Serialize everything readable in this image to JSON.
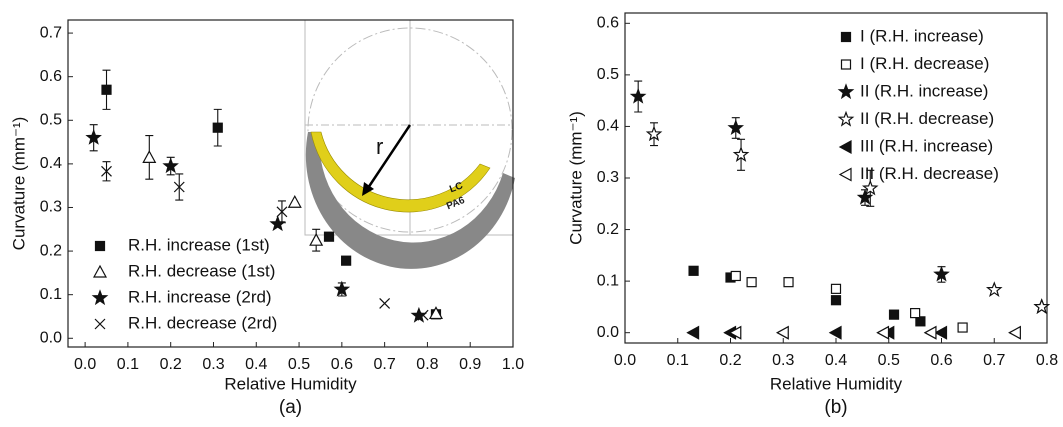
{
  "chart_data": [
    {
      "type": "scatter",
      "panel_label": "(a)",
      "x_label": "Relative Humidity",
      "y_label": "Curvature (mm⁻¹)",
      "xlim": [
        -0.04,
        1.0
      ],
      "ylim": [
        -0.02,
        0.73
      ],
      "xticks": [
        {
          "value": 0,
          "label": "0.0"
        },
        {
          "value": 0.1,
          "label": "0.1"
        },
        {
          "value": 0.2,
          "label": "0.2"
        },
        {
          "value": 0.3,
          "label": "0.3"
        },
        {
          "value": 0.4,
          "label": "0.4"
        },
        {
          "value": 0.5,
          "label": "0.5"
        },
        {
          "value": 0.6,
          "label": "0.6"
        },
        {
          "value": 0.7,
          "label": "0.7"
        },
        {
          "value": 0.8,
          "label": "0.8"
        },
        {
          "value": 0.9,
          "label": "0.9"
        },
        {
          "value": 1,
          "label": "1.0"
        }
      ],
      "yticks": [
        {
          "value": 0,
          "label": "0.0"
        },
        {
          "value": 0.1,
          "label": "0.1"
        },
        {
          "value": 0.2,
          "label": "0.2"
        },
        {
          "value": 0.3,
          "label": "0.3"
        },
        {
          "value": 0.4,
          "label": "0.4"
        },
        {
          "value": 0.5,
          "label": "0.5"
        },
        {
          "value": 0.6,
          "label": "0.6"
        },
        {
          "value": 0.7,
          "label": "0.7"
        }
      ],
      "inset_labels": [
        "r",
        "LC",
        "PA6"
      ],
      "series": [
        {
          "name": "R.H. increase (1st)",
          "marker": "square",
          "color": "#111111",
          "x": [
            0.05,
            0.31,
            0.57,
            0.61,
            0.82
          ],
          "y": [
            0.57,
            0.483,
            0.233,
            0.178,
            0.055
          ],
          "errors": [
            0.045,
            0.042,
            null,
            null,
            null
          ]
        },
        {
          "name": "R.H. decrease (1st)",
          "marker": "triangle-open",
          "color": "#111111",
          "x": [
            0.15,
            0.49,
            0.54,
            0.82
          ],
          "y": [
            0.415,
            0.312,
            0.225,
            0.057
          ],
          "errors": [
            0.05,
            null,
            0.025,
            null
          ]
        },
        {
          "name": "R.H. increase (2rd)",
          "marker": "star",
          "color": "#111111",
          "x": [
            0.02,
            0.2,
            0.45,
            0.6,
            0.78
          ],
          "y": [
            0.46,
            0.395,
            0.262,
            0.112,
            0.052
          ],
          "errors": [
            0.03,
            0.02,
            null,
            0.015,
            null
          ]
        },
        {
          "name": "R.H. decrease (2rd)",
          "marker": "x",
          "color": "#111111",
          "x": [
            0.05,
            0.22,
            0.46,
            0.7,
            0.79
          ],
          "y": [
            0.383,
            0.347,
            0.29,
            0.08,
            0.053
          ],
          "errors": [
            0.022,
            0.03,
            0.025,
            null,
            null
          ]
        }
      ]
    },
    {
      "type": "scatter",
      "panel_label": "(b)",
      "x_label": "Relative Humidity",
      "y_label": "Curvature (mm⁻¹)",
      "xlim": [
        0,
        0.8
      ],
      "ylim": [
        -0.02,
        0.62
      ],
      "xticks": [
        {
          "value": 0,
          "label": "0.0"
        },
        {
          "value": 0.1,
          "label": "0.1"
        },
        {
          "value": 0.2,
          "label": "0.2"
        },
        {
          "value": 0.3,
          "label": "0.3"
        },
        {
          "value": 0.4,
          "label": "0.4"
        },
        {
          "value": 0.5,
          "label": "0.5"
        },
        {
          "value": 0.6,
          "label": "0.6"
        },
        {
          "value": 0.7,
          "label": "0.7"
        },
        {
          "value": 0.8,
          "label": "0.8"
        }
      ],
      "yticks": [
        {
          "value": 0,
          "label": "0.0"
        },
        {
          "value": 0.1,
          "label": "0.1"
        },
        {
          "value": 0.2,
          "label": "0.2"
        },
        {
          "value": 0.3,
          "label": "0.3"
        },
        {
          "value": 0.4,
          "label": "0.4"
        },
        {
          "value": 0.5,
          "label": "0.5"
        },
        {
          "value": 0.6,
          "label": "0.6"
        }
      ],
      "series": [
        {
          "name": "I (R.H. increase)",
          "marker": "square",
          "color": "#111111",
          "x": [
            0.13,
            0.2,
            0.4,
            0.51,
            0.56
          ],
          "y": [
            0.12,
            0.107,
            0.063,
            0.035,
            0.022
          ],
          "errors": [
            null,
            null,
            null,
            null,
            null
          ]
        },
        {
          "name": "I (R.H. decrease)",
          "marker": "square-open",
          "color": "#111111",
          "x": [
            0.21,
            0.24,
            0.31,
            0.4,
            0.55,
            0.64
          ],
          "y": [
            0.11,
            0.098,
            0.098,
            0.085,
            0.038,
            0.01
          ],
          "errors": [
            null,
            null,
            null,
            null,
            null,
            null
          ]
        },
        {
          "name": "II (R.H. increase)",
          "marker": "star",
          "color": "#111111",
          "x": [
            0.025,
            0.21,
            0.455,
            0.6,
            0.79
          ],
          "y": [
            0.458,
            0.397,
            0.262,
            0.113,
            0.05
          ],
          "errors": [
            0.03,
            0.02,
            0.015,
            0.015,
            null
          ]
        },
        {
          "name": "II (R.H. decrease)",
          "marker": "star-open",
          "color": "#111111",
          "x": [
            0.055,
            0.22,
            0.465,
            0.7,
            0.79
          ],
          "y": [
            0.385,
            0.345,
            0.28,
            0.083,
            0.05
          ],
          "errors": [
            0.022,
            0.03,
            0.035,
            null,
            null
          ]
        },
        {
          "name": "III (R.H. increase)",
          "marker": "tri-left",
          "color": "#111111",
          "x": [
            0.13,
            0.2,
            0.4,
            0.5,
            0.6
          ],
          "y": [
            0,
            0,
            0,
            0,
            0
          ],
          "errors": [
            null,
            null,
            null,
            null,
            null
          ]
        },
        {
          "name": "III (R.H. decrease)",
          "marker": "tri-left-open",
          "color": "#111111",
          "x": [
            0.21,
            0.3,
            0.49,
            0.58,
            0.74
          ],
          "y": [
            0,
            0,
            0,
            0,
            0
          ],
          "errors": [
            null,
            null,
            null,
            null,
            null
          ]
        }
      ]
    }
  ]
}
